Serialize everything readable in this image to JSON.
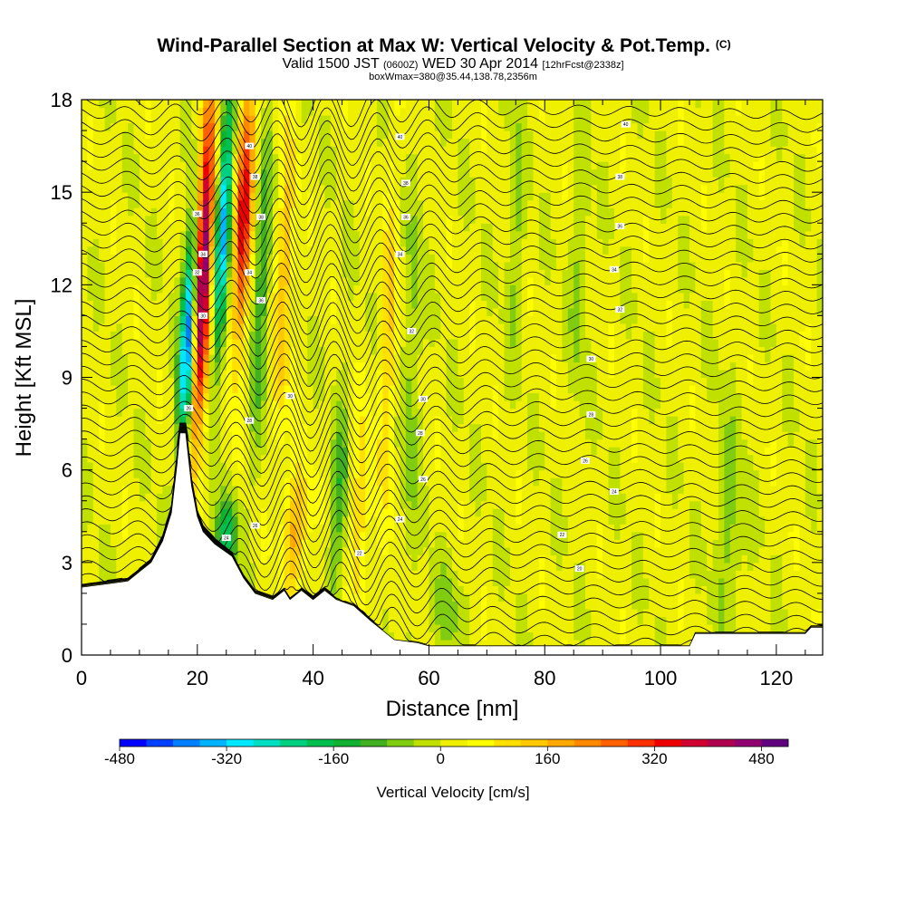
{
  "title": {
    "main": "Wind-Parallel Section at Max W: Vertical Velocity & Pot.Temp.",
    "copyright": "(C)",
    "valid_prefix": "Valid 1500 JST",
    "valid_z": "(0600Z)",
    "valid_date": "WED 30 Apr 2014",
    "forecast": "[12hrFcst@2338z]",
    "box_info": "boxWmax=380@35.44,138.78,2356m"
  },
  "chart_data": {
    "type": "heatmap",
    "xlabel": "Distance [nm]",
    "ylabel": "Height [Kft MSL]",
    "xlim": [
      0,
      128
    ],
    "ylim": [
      0,
      18
    ],
    "x_ticks": [
      0,
      20,
      40,
      60,
      80,
      100,
      120
    ],
    "y_ticks": [
      0,
      3,
      6,
      9,
      12,
      15,
      18
    ],
    "terrain_kft": [
      [
        0,
        2.2
      ],
      [
        8,
        2.4
      ],
      [
        10,
        2.7
      ],
      [
        12,
        3.0
      ],
      [
        14,
        3.7
      ],
      [
        15.5,
        4.6
      ],
      [
        16.5,
        6.2
      ],
      [
        17,
        7.2
      ],
      [
        18,
        7.2
      ],
      [
        19,
        5.5
      ],
      [
        20,
        4.5
      ],
      [
        21,
        4.0
      ],
      [
        23,
        3.6
      ],
      [
        26,
        3.2
      ],
      [
        28,
        2.5
      ],
      [
        30,
        2.0
      ],
      [
        33,
        1.8
      ],
      [
        35,
        2.1
      ],
      [
        36,
        1.8
      ],
      [
        38,
        2.1
      ],
      [
        40,
        1.8
      ],
      [
        42,
        2.1
      ],
      [
        44,
        1.8
      ],
      [
        47,
        1.6
      ],
      [
        50,
        1.1
      ],
      [
        54,
        0.5
      ],
      [
        58,
        0.4
      ],
      [
        60,
        0.3
      ],
      [
        100,
        0.3
      ],
      [
        105,
        0.3
      ],
      [
        106,
        0.7
      ],
      [
        125,
        0.7
      ],
      [
        126,
        0.9
      ],
      [
        128,
        0.9
      ]
    ],
    "w_features": [
      {
        "x": 18.5,
        "z": 10.5,
        "w": -460,
        "sx": 1.3,
        "sz": 3.6,
        "tilt": 0.28
      },
      {
        "x": 21.0,
        "z": 12.5,
        "w": 500,
        "sx": 1.5,
        "sz": 5.5,
        "tilt": 0.22
      },
      {
        "x": 24.5,
        "z": 14.0,
        "w": -360,
        "sx": 1.3,
        "sz": 4.5,
        "tilt": 0.26
      },
      {
        "x": 28.0,
        "z": 14.5,
        "w": 340,
        "sx": 1.5,
        "sz": 4.5,
        "tilt": 0.24
      },
      {
        "x": 25.0,
        "z": 3.8,
        "w": -200,
        "sx": 2.0,
        "sz": 1.3,
        "tilt": 0.4
      },
      {
        "x": 31.0,
        "z": 12.0,
        "w": -140,
        "sx": 1.4,
        "sz": 5.0,
        "tilt": 0.2
      },
      {
        "x": 37.0,
        "z": 4.0,
        "w": 170,
        "sx": 2.0,
        "sz": 2.0,
        "tilt": 0.2
      },
      {
        "x": 35.0,
        "z": 12.0,
        "w": 140,
        "sx": 1.5,
        "sz": 5.0,
        "tilt": 0.18
      },
      {
        "x": 44.5,
        "z": 5.0,
        "w": -120,
        "sx": 1.5,
        "sz": 3.5,
        "tilt": 0.22
      },
      {
        "x": 48.0,
        "z": 4.5,
        "w": 110,
        "sx": 1.6,
        "sz": 3.5,
        "tilt": 0.2
      },
      {
        "x": 53.0,
        "z": 10.0,
        "w": 110,
        "sx": 1.4,
        "sz": 6.0,
        "tilt": 0.1
      },
      {
        "x": 57.0,
        "z": 9.0,
        "w": -80,
        "sx": 1.5,
        "sz": 6.0,
        "tilt": 0.1
      },
      {
        "x": 63.0,
        "z": 1.5,
        "w": -70,
        "sx": 3.0,
        "sz": 1.5,
        "tilt": 0.0
      },
      {
        "x": 75.0,
        "z": 14.0,
        "w": -70,
        "sx": 1.5,
        "sz": 4.0,
        "tilt": 0.1
      },
      {
        "x": 86.0,
        "z": 12.5,
        "w": -70,
        "sx": 1.5,
        "sz": 4.0,
        "tilt": 0.1
      },
      {
        "x": 112.0,
        "z": 4.0,
        "w": -70,
        "sx": 2.5,
        "sz": 4.0,
        "tilt": 0.05
      }
    ],
    "theta_contour_labels": [
      {
        "x": 55,
        "z": 16.8,
        "label": "40"
      },
      {
        "x": 94,
        "z": 17.2,
        "label": "40"
      },
      {
        "x": 93,
        "z": 15.5,
        "label": "38"
      },
      {
        "x": 93,
        "z": 13.9,
        "label": "36"
      },
      {
        "x": 92,
        "z": 12.5,
        "label": "34"
      },
      {
        "x": 93,
        "z": 11.2,
        "label": "32"
      },
      {
        "x": 88,
        "z": 9.6,
        "label": "30"
      },
      {
        "x": 88,
        "z": 7.8,
        "label": "28"
      },
      {
        "x": 87,
        "z": 6.3,
        "label": "26"
      },
      {
        "x": 92,
        "z": 5.3,
        "label": "24"
      },
      {
        "x": 83,
        "z": 3.9,
        "label": "22"
      },
      {
        "x": 86,
        "z": 2.8,
        "label": "20"
      },
      {
        "x": 59,
        "z": 8.3,
        "label": "30"
      },
      {
        "x": 58.5,
        "z": 7.2,
        "label": "28"
      },
      {
        "x": 59,
        "z": 5.7,
        "label": "26"
      },
      {
        "x": 55,
        "z": 4.4,
        "label": "24"
      },
      {
        "x": 48,
        "z": 3.3,
        "label": "22"
      },
      {
        "x": 36,
        "z": 8.4,
        "label": "30"
      },
      {
        "x": 29,
        "z": 7.6,
        "label": "28"
      },
      {
        "x": 30,
        "z": 4.2,
        "label": "26"
      },
      {
        "x": 25,
        "z": 3.8,
        "label": "24"
      },
      {
        "x": 31,
        "z": 11.5,
        "label": "36"
      },
      {
        "x": 29,
        "z": 12.4,
        "label": "34"
      },
      {
        "x": 31,
        "z": 14.2,
        "label": "38"
      },
      {
        "x": 30,
        "z": 15.5,
        "label": "38"
      },
      {
        "x": 29,
        "z": 16.5,
        "label": "40"
      },
      {
        "x": 20,
        "z": 14.3,
        "label": "36"
      },
      {
        "x": 21,
        "z": 13.0,
        "label": "34"
      },
      {
        "x": 20,
        "z": 12.4,
        "label": "32"
      },
      {
        "x": 21,
        "z": 11.0,
        "label": "30"
      },
      {
        "x": 18.5,
        "z": 8.0,
        "label": "26"
      },
      {
        "x": 56,
        "z": 15.3,
        "label": "38"
      },
      {
        "x": 56,
        "z": 14.2,
        "label": "36"
      },
      {
        "x": 55,
        "z": 13.0,
        "label": "34"
      },
      {
        "x": 57,
        "z": 10.5,
        "label": "32"
      }
    ],
    "colorbar": {
      "label": "Vertical Velocity [cm/s]",
      "min": -480,
      "max": 520,
      "ticks": [
        -480,
        -320,
        -160,
        0,
        160,
        320,
        480
      ],
      "tick_labels": [
        "-480",
        "-320",
        "-160",
        "0",
        "160",
        "320",
        "480"
      ],
      "colors": [
        "#0000ff",
        "#0040ff",
        "#0080ff",
        "#00b4ff",
        "#00e8ff",
        "#00e0c0",
        "#00d080",
        "#00c050",
        "#10b030",
        "#40b020",
        "#80cc10",
        "#c0e000",
        "#eef000",
        "#ffff00",
        "#ffe000",
        "#ffc800",
        "#ffa800",
        "#ff8800",
        "#ff6000",
        "#ff3000",
        "#ee0000",
        "#d00030",
        "#b00050",
        "#900070",
        "#600080"
      ]
    }
  }
}
